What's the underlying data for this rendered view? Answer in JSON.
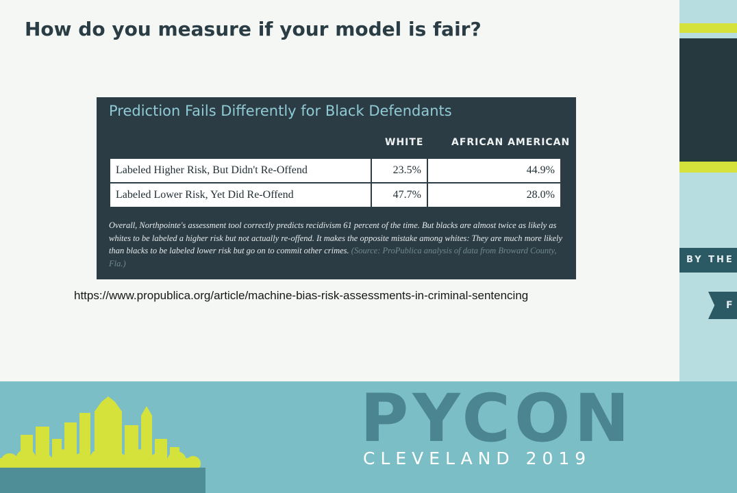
{
  "slide": {
    "title": "How do you measure if your model is fair?",
    "link": "https://www.propublica.org/article/machine-bias-risk-assessments-in-criminal-sentencing"
  },
  "figure": {
    "title": "Prediction Fails Differently for Black Defendants",
    "columns": [
      "WHITE",
      "AFRICAN AMERICAN"
    ],
    "rows": [
      {
        "label": "Labeled Higher Risk, But Didn't Re-Offend",
        "white": "23.5%",
        "african_american": "44.9%"
      },
      {
        "label": "Labeled Lower Risk, Yet Did Re-Offend",
        "white": "47.7%",
        "african_american": "28.0%"
      }
    ],
    "caption": "Overall, Northpointe's assessment tool correctly predicts recidivism 61 percent of the time. But blacks are almost twice as likely as whites to be labeled a higher risk but not actually re-offend. It makes the opposite mistake among whites: They are much more likely than blacks to be labeled lower risk but go on to commit other crimes.",
    "source": "(Source: ProPublica analysis of data from Broward County, Fla.)"
  },
  "conference": {
    "name": "PYCON",
    "location": "CLEVELAND 2019",
    "side_banner": "BY THE",
    "side_tag": "F"
  },
  "colors": {
    "accent_yellow": "#d6e23c",
    "dark_panel": "#25393f",
    "teal_band": "#7cbec6",
    "slide_bg": "#f4f7f4"
  }
}
